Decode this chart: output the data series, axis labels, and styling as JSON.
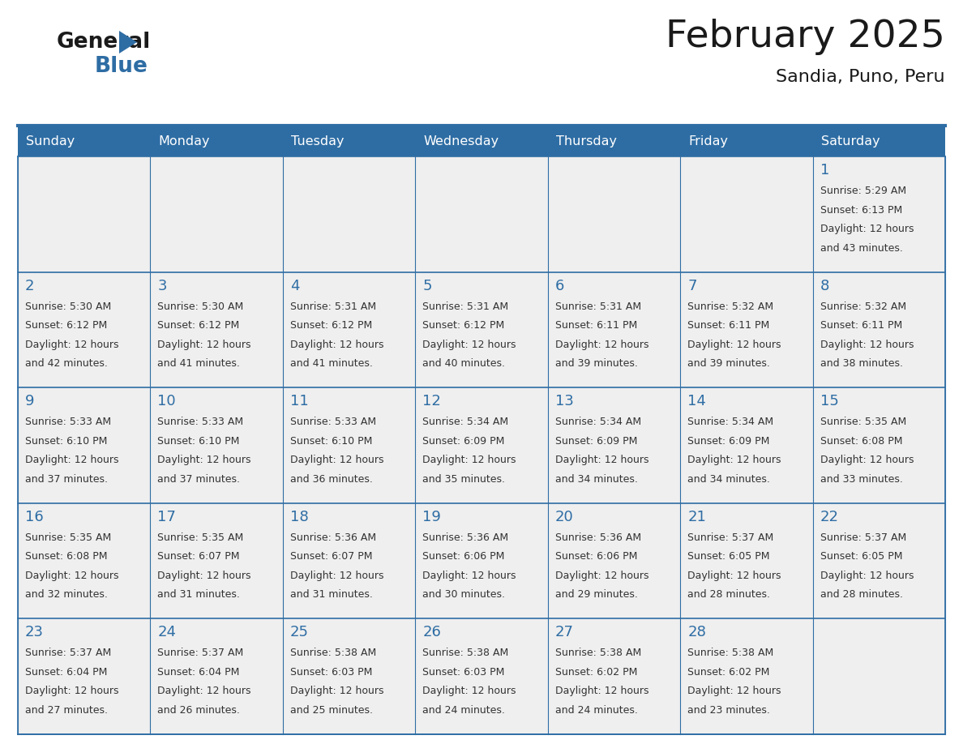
{
  "title": "February 2025",
  "subtitle": "Sandia, Puno, Peru",
  "days_of_week": [
    "Sunday",
    "Monday",
    "Tuesday",
    "Wednesday",
    "Thursday",
    "Friday",
    "Saturday"
  ],
  "header_bg": "#2E6DA4",
  "header_text": "#FFFFFF",
  "cell_bg": "#EFEFEF",
  "border_color": "#2E6DA4",
  "day_number_color": "#2E6DA4",
  "text_color": "#333333",
  "title_color": "#1a1a1a",
  "calendar_data": [
    [
      null,
      null,
      null,
      null,
      null,
      null,
      {
        "day": "1",
        "sunrise": "5:29 AM",
        "sunset": "6:13 PM",
        "daylight_h": "12 hours",
        "daylight_m": "and 43 minutes."
      }
    ],
    [
      {
        "day": "2",
        "sunrise": "5:30 AM",
        "sunset": "6:12 PM",
        "daylight_h": "12 hours",
        "daylight_m": "and 42 minutes."
      },
      {
        "day": "3",
        "sunrise": "5:30 AM",
        "sunset": "6:12 PM",
        "daylight_h": "12 hours",
        "daylight_m": "and 41 minutes."
      },
      {
        "day": "4",
        "sunrise": "5:31 AM",
        "sunset": "6:12 PM",
        "daylight_h": "12 hours",
        "daylight_m": "and 41 minutes."
      },
      {
        "day": "5",
        "sunrise": "5:31 AM",
        "sunset": "6:12 PM",
        "daylight_h": "12 hours",
        "daylight_m": "and 40 minutes."
      },
      {
        "day": "6",
        "sunrise": "5:31 AM",
        "sunset": "6:11 PM",
        "daylight_h": "12 hours",
        "daylight_m": "and 39 minutes."
      },
      {
        "day": "7",
        "sunrise": "5:32 AM",
        "sunset": "6:11 PM",
        "daylight_h": "12 hours",
        "daylight_m": "and 39 minutes."
      },
      {
        "day": "8",
        "sunrise": "5:32 AM",
        "sunset": "6:11 PM",
        "daylight_h": "12 hours",
        "daylight_m": "and 38 minutes."
      }
    ],
    [
      {
        "day": "9",
        "sunrise": "5:33 AM",
        "sunset": "6:10 PM",
        "daylight_h": "12 hours",
        "daylight_m": "and 37 minutes."
      },
      {
        "day": "10",
        "sunrise": "5:33 AM",
        "sunset": "6:10 PM",
        "daylight_h": "12 hours",
        "daylight_m": "and 37 minutes."
      },
      {
        "day": "11",
        "sunrise": "5:33 AM",
        "sunset": "6:10 PM",
        "daylight_h": "12 hours",
        "daylight_m": "and 36 minutes."
      },
      {
        "day": "12",
        "sunrise": "5:34 AM",
        "sunset": "6:09 PM",
        "daylight_h": "12 hours",
        "daylight_m": "and 35 minutes."
      },
      {
        "day": "13",
        "sunrise": "5:34 AM",
        "sunset": "6:09 PM",
        "daylight_h": "12 hours",
        "daylight_m": "and 34 minutes."
      },
      {
        "day": "14",
        "sunrise": "5:34 AM",
        "sunset": "6:09 PM",
        "daylight_h": "12 hours",
        "daylight_m": "and 34 minutes."
      },
      {
        "day": "15",
        "sunrise": "5:35 AM",
        "sunset": "6:08 PM",
        "daylight_h": "12 hours",
        "daylight_m": "and 33 minutes."
      }
    ],
    [
      {
        "day": "16",
        "sunrise": "5:35 AM",
        "sunset": "6:08 PM",
        "daylight_h": "12 hours",
        "daylight_m": "and 32 minutes."
      },
      {
        "day": "17",
        "sunrise": "5:35 AM",
        "sunset": "6:07 PM",
        "daylight_h": "12 hours",
        "daylight_m": "and 31 minutes."
      },
      {
        "day": "18",
        "sunrise": "5:36 AM",
        "sunset": "6:07 PM",
        "daylight_h": "12 hours",
        "daylight_m": "and 31 minutes."
      },
      {
        "day": "19",
        "sunrise": "5:36 AM",
        "sunset": "6:06 PM",
        "daylight_h": "12 hours",
        "daylight_m": "and 30 minutes."
      },
      {
        "day": "20",
        "sunrise": "5:36 AM",
        "sunset": "6:06 PM",
        "daylight_h": "12 hours",
        "daylight_m": "and 29 minutes."
      },
      {
        "day": "21",
        "sunrise": "5:37 AM",
        "sunset": "6:05 PM",
        "daylight_h": "12 hours",
        "daylight_m": "and 28 minutes."
      },
      {
        "day": "22",
        "sunrise": "5:37 AM",
        "sunset": "6:05 PM",
        "daylight_h": "12 hours",
        "daylight_m": "and 28 minutes."
      }
    ],
    [
      {
        "day": "23",
        "sunrise": "5:37 AM",
        "sunset": "6:04 PM",
        "daylight_h": "12 hours",
        "daylight_m": "and 27 minutes."
      },
      {
        "day": "24",
        "sunrise": "5:37 AM",
        "sunset": "6:04 PM",
        "daylight_h": "12 hours",
        "daylight_m": "and 26 minutes."
      },
      {
        "day": "25",
        "sunrise": "5:38 AM",
        "sunset": "6:03 PM",
        "daylight_h": "12 hours",
        "daylight_m": "and 25 minutes."
      },
      {
        "day": "26",
        "sunrise": "5:38 AM",
        "sunset": "6:03 PM",
        "daylight_h": "12 hours",
        "daylight_m": "and 24 minutes."
      },
      {
        "day": "27",
        "sunrise": "5:38 AM",
        "sunset": "6:02 PM",
        "daylight_h": "12 hours",
        "daylight_m": "and 24 minutes."
      },
      {
        "day": "28",
        "sunrise": "5:38 AM",
        "sunset": "6:02 PM",
        "daylight_h": "12 hours",
        "daylight_m": "and 23 minutes."
      },
      null
    ]
  ],
  "figsize": [
    11.88,
    9.18
  ],
  "dpi": 100
}
